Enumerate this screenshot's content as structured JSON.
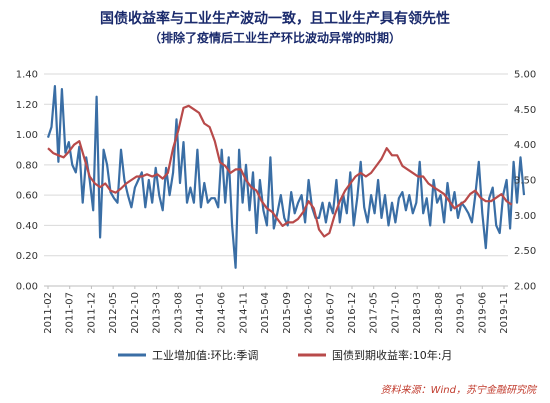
{
  "chart_data": {
    "type": "line",
    "title": "国债收益率与工业生产波动一致，且工业生产具有领先性",
    "subtitle": "（排除了疫情后工业生产环比波动异常的时期）",
    "x_labels": [
      "2011-02",
      "2011-07",
      "2011-12",
      "2012-05",
      "2012-10",
      "2013-03",
      "2013-08",
      "2014-01",
      "2014-06",
      "2014-11",
      "2015-04",
      "2015-09",
      "2016-02",
      "2016-07",
      "2016-12",
      "2017-05",
      "2017-10",
      "2018-03",
      "2018-08",
      "2019-01",
      "2019-06",
      "2019-11"
    ],
    "y_left": {
      "range": [
        0,
        1.4
      ],
      "ticks": [
        "0.00",
        "0.20",
        "0.40",
        "0.60",
        "0.80",
        "1.00",
        "1.20",
        "1.40"
      ]
    },
    "y_right": {
      "range": [
        2.0,
        5.0
      ],
      "ticks": [
        "2.00",
        "2.50",
        "3.00",
        "3.50",
        "4.00",
        "4.50",
        "5.00"
      ]
    },
    "grid": true,
    "legend_position": "bottom",
    "series": [
      {
        "name": "工业增加值:环比:季调",
        "axis": "left",
        "color": "#3a6ea5",
        "values": [
          0.98,
          1.05,
          1.32,
          0.82,
          1.3,
          0.88,
          0.95,
          0.8,
          0.75,
          0.92,
          0.55,
          0.85,
          0.7,
          0.5,
          1.25,
          0.32,
          0.9,
          0.8,
          0.62,
          0.58,
          0.55,
          0.9,
          0.7,
          0.6,
          0.52,
          0.65,
          0.7,
          0.75,
          0.52,
          0.7,
          0.55,
          0.78,
          0.6,
          0.5,
          0.78,
          0.6,
          0.75,
          1.1,
          0.68,
          0.95,
          0.55,
          0.65,
          0.55,
          0.9,
          0.52,
          0.68,
          0.55,
          0.58,
          0.58,
          0.52,
          0.9,
          0.55,
          0.85,
          0.4,
          0.12,
          0.9,
          0.55,
          0.8,
          0.5,
          0.75,
          0.35,
          0.7,
          0.5,
          0.4,
          0.85,
          0.38,
          0.48,
          0.6,
          0.45,
          0.4,
          0.62,
          0.48,
          0.55,
          0.6,
          0.42,
          0.7,
          0.52,
          0.45,
          0.45,
          0.55,
          0.42,
          0.55,
          0.48,
          0.7,
          0.42,
          0.6,
          0.48,
          0.75,
          0.4,
          0.58,
          0.82,
          0.52,
          0.42,
          0.6,
          0.48,
          0.7,
          0.45,
          0.6,
          0.4,
          0.55,
          0.42,
          0.58,
          0.62,
          0.5,
          0.6,
          0.48,
          0.55,
          0.82,
          0.48,
          0.58,
          0.4,
          0.7,
          0.55,
          0.6,
          0.42,
          0.68,
          0.5,
          0.62,
          0.45,
          0.55,
          0.52,
          0.48,
          0.42,
          0.6,
          0.82,
          0.48,
          0.25,
          0.58,
          0.65,
          0.4,
          0.35,
          0.6,
          0.7,
          0.38,
          0.82,
          0.55,
          0.85,
          0.6
        ],
        "x_start": 0,
        "x_step": 0.16
      },
      {
        "name": "国债到期收益率:10年:月",
        "axis": "right",
        "color": "#b84a4a",
        "values": [
          3.95,
          3.88,
          3.85,
          3.82,
          3.9,
          4.0,
          4.05,
          3.8,
          3.55,
          3.45,
          3.4,
          3.45,
          3.35,
          3.32,
          3.38,
          3.45,
          3.5,
          3.55,
          3.55,
          3.58,
          3.55,
          3.58,
          3.52,
          3.6,
          3.95,
          4.2,
          4.52,
          4.55,
          4.5,
          4.45,
          4.3,
          4.25,
          4.05,
          3.75,
          3.7,
          3.6,
          3.65,
          3.65,
          3.5,
          3.4,
          3.35,
          3.2,
          3.1,
          3.05,
          2.95,
          2.85,
          2.9,
          2.9,
          2.95,
          3.05,
          3.2,
          3.1,
          2.8,
          2.7,
          2.75,
          3.0,
          3.2,
          3.35,
          3.45,
          3.55,
          3.6,
          3.55,
          3.6,
          3.7,
          3.8,
          3.95,
          3.85,
          3.85,
          3.7,
          3.65,
          3.6,
          3.55,
          3.55,
          3.45,
          3.4,
          3.35,
          3.3,
          3.2,
          3.1,
          3.15,
          3.2,
          3.3,
          3.35,
          3.25,
          3.2,
          3.2,
          3.25,
          3.3,
          3.2,
          3.15
        ],
        "x_start": 0,
        "x_step": 0.24
      }
    ]
  },
  "source": "资料来源：Wind，苏宁金融研究院"
}
